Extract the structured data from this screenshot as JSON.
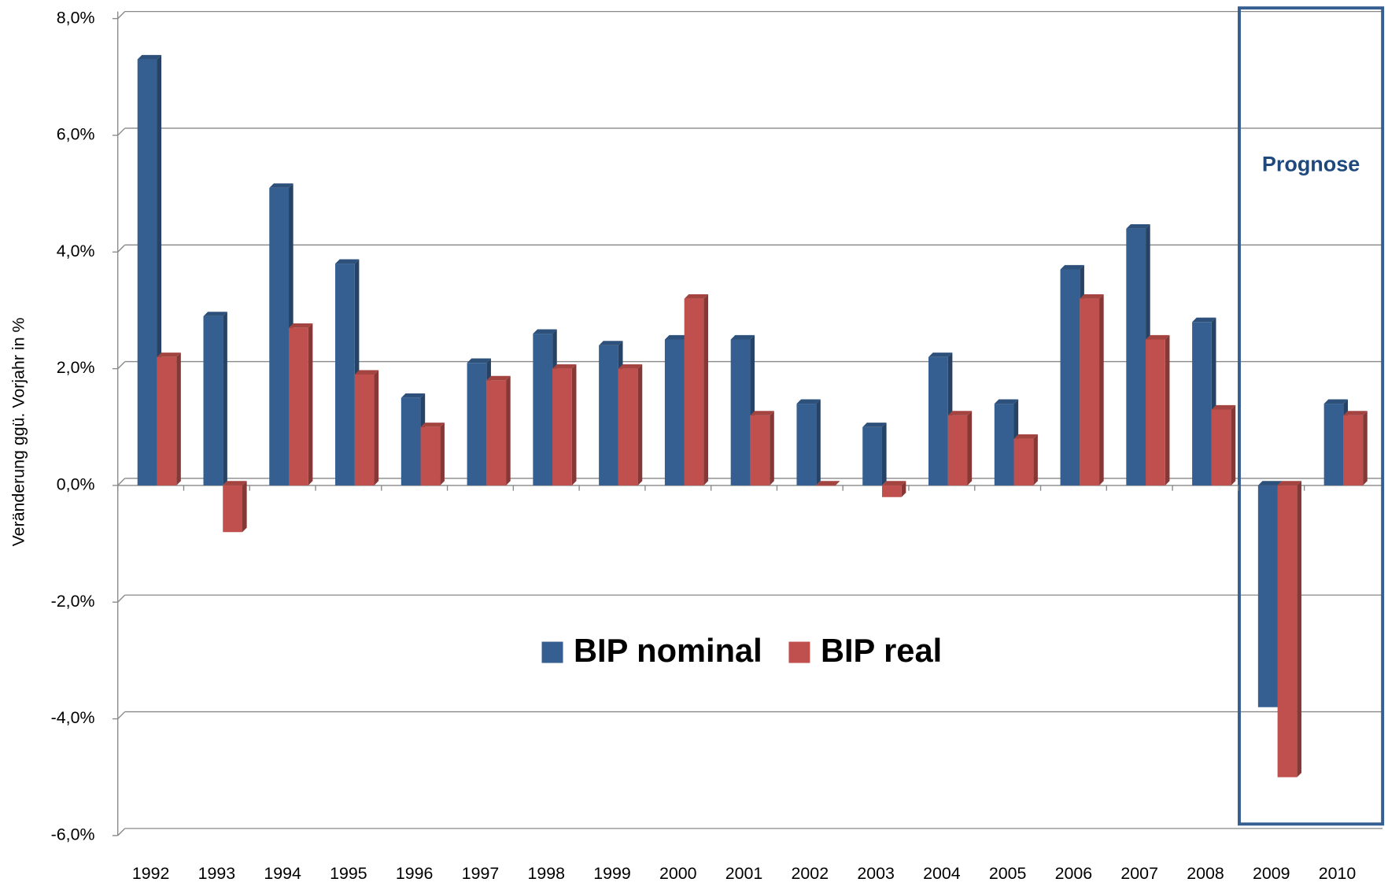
{
  "chart_data": {
    "type": "bar3d",
    "y_label": "Veränderung ggü. Vorjahr in %",
    "annotation": "Prognose",
    "categories": [
      "1992",
      "1993",
      "1994",
      "1995",
      "1996",
      "1997",
      "1998",
      "1999",
      "2000",
      "2001",
      "2002",
      "2003",
      "2004",
      "2005",
      "2006",
      "2007",
      "2008",
      "2009",
      "2010"
    ],
    "series": [
      {
        "name": "BIP nominal",
        "color": "#365f91",
        "values": [
          7.3,
          2.9,
          5.1,
          3.8,
          1.5,
          2.1,
          2.6,
          2.4,
          2.5,
          2.5,
          1.4,
          1.0,
          2.2,
          1.4,
          3.7,
          4.4,
          2.8,
          -3.8,
          1.4
        ]
      },
      {
        "name": "BIP real",
        "color": "#c0504d",
        "values": [
          2.2,
          -0.8,
          2.7,
          1.9,
          1.0,
          1.8,
          2.0,
          2.0,
          3.2,
          1.2,
          0.0,
          -0.2,
          1.2,
          0.8,
          3.2,
          2.5,
          1.3,
          -5.0,
          1.2
        ]
      }
    ],
    "ylim": [
      -6,
      8
    ],
    "yticks": [
      {
        "value": -6,
        "label": "-6,0%"
      },
      {
        "value": -4,
        "label": "-4,0%"
      },
      {
        "value": -2,
        "label": "-2,0%"
      },
      {
        "value": 0,
        "label": "0,0%"
      },
      {
        "value": 2,
        "label": "2,0%"
      },
      {
        "value": 4,
        "label": "4,0%"
      },
      {
        "value": 6,
        "label": "6,0%"
      },
      {
        "value": 8,
        "label": "8,0%"
      }
    ],
    "grid": true,
    "legend": "center"
  }
}
